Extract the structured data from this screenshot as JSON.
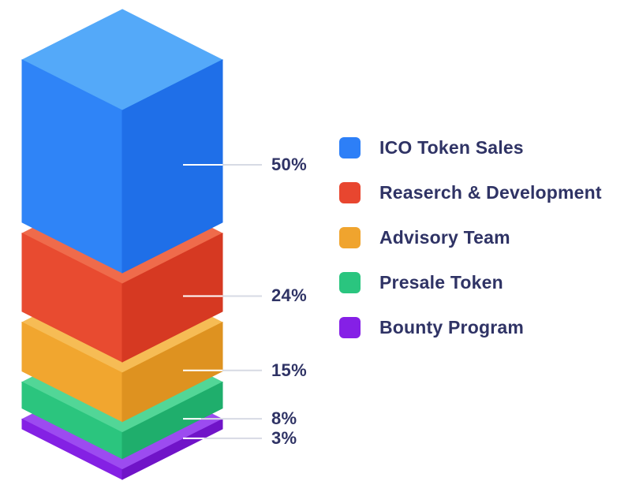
{
  "chart_data": {
    "type": "stacked-3d-column",
    "title": "",
    "unit": "%",
    "legend_position": "right",
    "background": "#FFFFFF",
    "text_color": "#2F3365",
    "leader_lines": {
      "inner_color": "#FFFFFF",
      "outer_color": "#D7DAE4"
    },
    "segments": [
      {
        "label": "ICO Token Sales",
        "value": 50,
        "display": "50%",
        "color": "#2D7FF7",
        "top": "#54A9F9",
        "left": "#2F84F7",
        "right": "#1F6FE8"
      },
      {
        "label": "Reaserch & Development",
        "value": 24,
        "display": "24%",
        "color": "#E8462F",
        "top": "#EF6B4B",
        "left": "#E84B30",
        "right": "#D63922"
      },
      {
        "label": "Advisory Team",
        "value": 15,
        "display": "15%",
        "color": "#F0A42E",
        "top": "#F6BC55",
        "left": "#F1A62F",
        "right": "#DE9220"
      },
      {
        "label": "Presale Token",
        "value": 8,
        "display": "8%",
        "color": "#2AC57F",
        "top": "#52D697",
        "left": "#2BC57E",
        "right": "#1FAE6C"
      },
      {
        "label": "Bounty Program",
        "value": 3,
        "display": "3%",
        "color": "#8520E6",
        "top": "#9C4BF0",
        "left": "#8421E4",
        "right": "#7014C8"
      }
    ]
  }
}
